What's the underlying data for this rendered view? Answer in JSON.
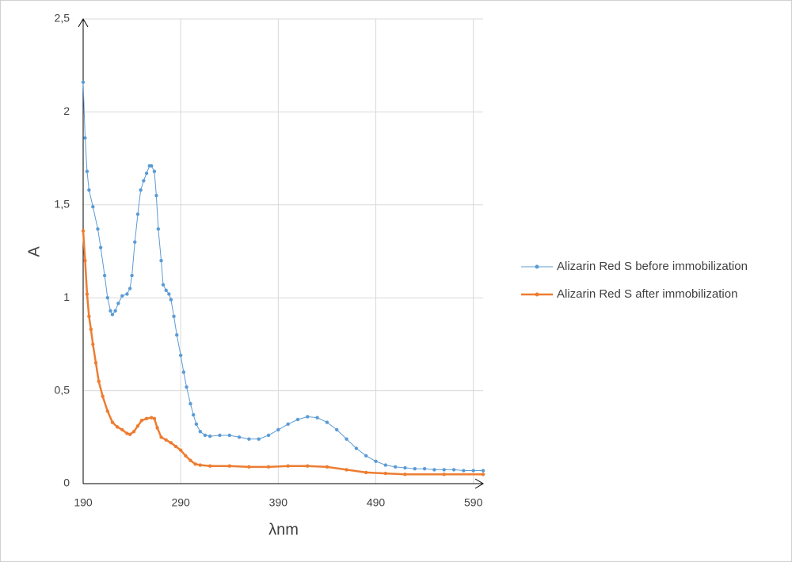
{
  "chart_data": {
    "type": "line",
    "xlabel": "λnm",
    "ylabel": "A",
    "xlim": [
      190,
      600
    ],
    "ylim": [
      0,
      2.5
    ],
    "xticks": [
      190,
      290,
      390,
      490,
      590
    ],
    "yticks": [
      0,
      {
        "value": 0.5,
        "label": "0,5"
      },
      1,
      {
        "value": 1.5,
        "label": "1,5"
      },
      2,
      {
        "value": 2.5,
        "label": "2,5"
      }
    ],
    "grid": true,
    "legend": "right",
    "series": [
      {
        "name": "Alizarin Red S before immobilization",
        "color": "#5b9bd5",
        "x": [
          190,
          192,
          194,
          196,
          200,
          205,
          208,
          212,
          215,
          218,
          220,
          223,
          226,
          230,
          235,
          238,
          240,
          243,
          246,
          249,
          252,
          255,
          258,
          260,
          263,
          265,
          267,
          270,
          272,
          275,
          278,
          280,
          283,
          286,
          290,
          293,
          296,
          300,
          303,
          306,
          310,
          315,
          320,
          330,
          340,
          350,
          360,
          370,
          380,
          390,
          400,
          410,
          420,
          430,
          440,
          450,
          460,
          470,
          480,
          490,
          500,
          510,
          520,
          530,
          540,
          550,
          560,
          570,
          580,
          590,
          600
        ],
        "values": [
          2.16,
          1.86,
          1.68,
          1.58,
          1.49,
          1.37,
          1.27,
          1.12,
          1.0,
          0.93,
          0.91,
          0.93,
          0.97,
          1.01,
          1.02,
          1.05,
          1.12,
          1.3,
          1.45,
          1.58,
          1.63,
          1.67,
          1.71,
          1.71,
          1.68,
          1.55,
          1.37,
          1.2,
          1.07,
          1.04,
          1.02,
          0.99,
          0.9,
          0.8,
          0.69,
          0.6,
          0.52,
          0.43,
          0.37,
          0.32,
          0.28,
          0.26,
          0.255,
          0.26,
          0.26,
          0.25,
          0.24,
          0.24,
          0.26,
          0.29,
          0.32,
          0.345,
          0.36,
          0.355,
          0.33,
          0.29,
          0.24,
          0.19,
          0.15,
          0.12,
          0.1,
          0.09,
          0.085,
          0.08,
          0.08,
          0.075,
          0.075,
          0.075,
          0.07,
          0.07,
          0.07
        ]
      },
      {
        "name": "Alizarin Red S after immobilization",
        "color": "#ed7d31",
        "x": [
          190,
          192,
          194,
          196,
          198,
          200,
          203,
          206,
          210,
          215,
          220,
          225,
          230,
          235,
          238,
          242,
          246,
          250,
          255,
          260,
          263,
          266,
          270,
          275,
          280,
          285,
          290,
          295,
          300,
          305,
          310,
          320,
          340,
          360,
          380,
          400,
          420,
          440,
          460,
          480,
          500,
          520,
          560,
          600
        ],
        "values": [
          1.36,
          1.2,
          1.02,
          0.9,
          0.83,
          0.75,
          0.65,
          0.55,
          0.47,
          0.39,
          0.33,
          0.305,
          0.29,
          0.27,
          0.265,
          0.28,
          0.31,
          0.34,
          0.35,
          0.355,
          0.35,
          0.3,
          0.25,
          0.235,
          0.22,
          0.2,
          0.18,
          0.15,
          0.125,
          0.105,
          0.1,
          0.095,
          0.095,
          0.09,
          0.09,
          0.095,
          0.095,
          0.09,
          0.075,
          0.06,
          0.055,
          0.05,
          0.05,
          0.05
        ]
      }
    ]
  }
}
